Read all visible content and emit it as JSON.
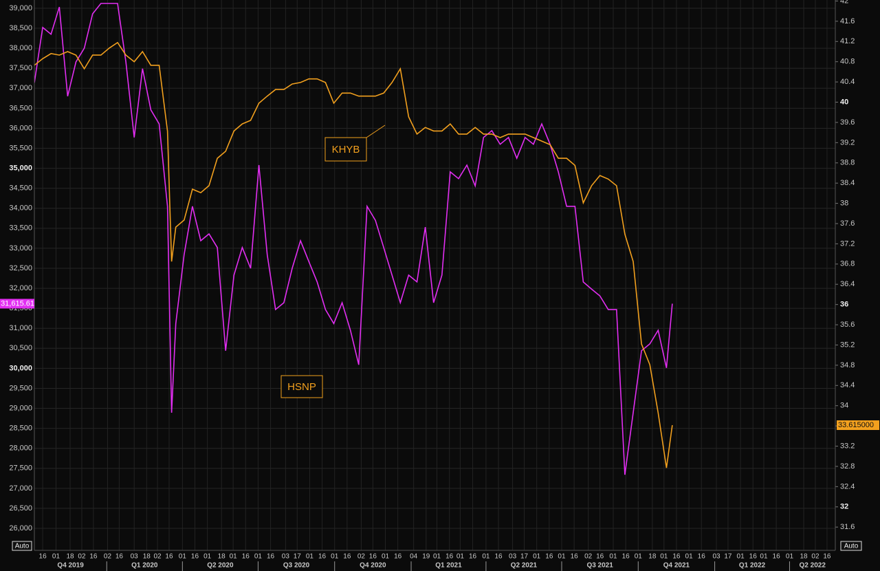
{
  "chart_data": {
    "type": "line",
    "x": [
      "2019-10-06",
      "2019-10-16",
      "2019-10-26",
      "2019-11-05",
      "2019-11-15",
      "2019-11-25",
      "2019-12-05",
      "2019-12-15",
      "2019-12-25",
      "2020-01-04",
      "2020-01-14",
      "2020-01-24",
      "2020-02-03",
      "2020-02-13",
      "2020-02-23",
      "2020-03-04",
      "2020-03-14",
      "2020-03-19",
      "2020-03-24",
      "2020-04-03",
      "2020-04-13",
      "2020-04-23",
      "2020-05-03",
      "2020-05-13",
      "2020-05-23",
      "2020-06-02",
      "2020-06-12",
      "2020-06-22",
      "2020-07-02",
      "2020-07-12",
      "2020-07-22",
      "2020-08-01",
      "2020-08-11",
      "2020-08-21",
      "2020-08-31",
      "2020-09-10",
      "2020-09-20",
      "2020-09-30",
      "2020-10-10",
      "2020-10-20",
      "2020-10-30",
      "2020-11-09",
      "2020-11-19",
      "2020-11-29",
      "2020-12-09",
      "2020-12-19",
      "2020-12-29",
      "2021-01-08",
      "2021-01-18",
      "2021-01-28",
      "2021-02-07",
      "2021-02-17",
      "2021-02-27",
      "2021-03-09",
      "2021-03-19",
      "2021-03-29",
      "2021-04-08",
      "2021-04-18",
      "2021-04-28",
      "2021-05-08",
      "2021-05-18",
      "2021-05-28",
      "2021-06-07",
      "2021-06-17",
      "2021-06-27",
      "2021-07-07",
      "2021-07-17",
      "2021-07-27",
      "2021-08-06",
      "2021-08-16",
      "2021-08-26",
      "2021-09-05",
      "2021-09-15",
      "2021-09-25",
      "2021-10-05",
      "2021-10-15",
      "2021-10-25",
      "2021-11-04",
      "2021-11-11"
    ],
    "series": [
      {
        "name": "HSNP",
        "color": "#e22ef2",
        "axis": "y",
        "last_label": "31,615.61",
        "values": [
          37140,
          38520,
          38350,
          39030,
          36800,
          37660,
          38000,
          38860,
          39120,
          39120,
          39120,
          37660,
          35770,
          37490,
          36460,
          36110,
          34050,
          28890,
          31120,
          32840,
          34050,
          33190,
          33360,
          33020,
          30440,
          32330,
          33020,
          32500,
          35080,
          32840,
          31470,
          31640,
          32500,
          33190,
          32670,
          32160,
          31470,
          31120,
          31640,
          30950,
          30090,
          34050,
          33700,
          33020,
          32330,
          31640,
          32330,
          32160,
          33530,
          31640,
          32330,
          34910,
          34740,
          35080,
          34560,
          35770,
          35940,
          35600,
          35770,
          35250,
          35770,
          35600,
          36110,
          35600,
          34910,
          34050,
          34050,
          32160,
          31980,
          31810,
          31470,
          31470,
          27340,
          28890,
          30440,
          30610,
          30950,
          30010,
          31615.61
        ]
      },
      {
        "name": "KHYB",
        "color": "#f2a01e",
        "axis": "y2",
        "last_label": "33.615000",
        "values": [
          40.73,
          40.86,
          40.96,
          40.93,
          41.0,
          40.93,
          40.66,
          40.93,
          40.93,
          41.07,
          41.18,
          40.93,
          40.8,
          41.0,
          40.73,
          40.73,
          39.43,
          36.85,
          37.53,
          37.67,
          38.28,
          38.21,
          38.35,
          38.89,
          39.03,
          39.43,
          39.57,
          39.64,
          39.98,
          40.12,
          40.25,
          40.25,
          40.36,
          40.39,
          40.46,
          40.46,
          40.39,
          39.98,
          40.18,
          40.18,
          40.12,
          40.12,
          40.12,
          40.18,
          40.39,
          40.66,
          39.71,
          39.37,
          39.5,
          39.43,
          39.43,
          39.57,
          39.37,
          39.37,
          39.5,
          39.37,
          39.37,
          39.3,
          39.37,
          39.37,
          39.37,
          39.3,
          39.23,
          39.16,
          38.89,
          38.89,
          38.75,
          38.01,
          38.35,
          38.55,
          38.48,
          38.35,
          37.39,
          36.85,
          35.22,
          34.81,
          33.86,
          32.77,
          33.615
        ]
      }
    ],
    "xlim": [
      "2019-10-06",
      "2022-05-26"
    ],
    "xticks": [
      {
        "value": "2019-10-16",
        "label": "16"
      },
      {
        "value": "2019-11-01",
        "label": "01"
      },
      {
        "value": "2019-11-18",
        "label": "18"
      },
      {
        "value": "2019-12-02",
        "label": "02"
      },
      {
        "value": "2019-12-16",
        "label": "16"
      },
      {
        "value": "2020-01-02",
        "label": "02"
      },
      {
        "value": "2020-01-16",
        "label": "16"
      },
      {
        "value": "2020-02-03",
        "label": "03"
      },
      {
        "value": "2020-02-18",
        "label": "18"
      },
      {
        "value": "2020-03-02",
        "label": "02"
      },
      {
        "value": "2020-03-16",
        "label": "16"
      },
      {
        "value": "2020-04-01",
        "label": "01"
      },
      {
        "value": "2020-04-16",
        "label": "16"
      },
      {
        "value": "2020-05-01",
        "label": "01"
      },
      {
        "value": "2020-05-18",
        "label": "18"
      },
      {
        "value": "2020-06-01",
        "label": "01"
      },
      {
        "value": "2020-06-16",
        "label": "16"
      },
      {
        "value": "2020-07-01",
        "label": "01"
      },
      {
        "value": "2020-07-16",
        "label": "16"
      },
      {
        "value": "2020-08-03",
        "label": "03"
      },
      {
        "value": "2020-08-17",
        "label": "17"
      },
      {
        "value": "2020-09-01",
        "label": "01"
      },
      {
        "value": "2020-09-16",
        "label": "16"
      },
      {
        "value": "2020-10-01",
        "label": "01"
      },
      {
        "value": "2020-10-16",
        "label": "16"
      },
      {
        "value": "2020-11-02",
        "label": "02"
      },
      {
        "value": "2020-11-16",
        "label": "16"
      },
      {
        "value": "2020-12-01",
        "label": "01"
      },
      {
        "value": "2020-12-16",
        "label": "16"
      },
      {
        "value": "2021-01-04",
        "label": "04"
      },
      {
        "value": "2021-01-19",
        "label": "19"
      },
      {
        "value": "2021-02-01",
        "label": "01"
      },
      {
        "value": "2021-02-16",
        "label": "16"
      },
      {
        "value": "2021-03-01",
        "label": "01"
      },
      {
        "value": "2021-03-16",
        "label": "16"
      },
      {
        "value": "2021-04-01",
        "label": "01"
      },
      {
        "value": "2021-04-16",
        "label": "16"
      },
      {
        "value": "2021-05-03",
        "label": "03"
      },
      {
        "value": "2021-05-17",
        "label": "17"
      },
      {
        "value": "2021-06-01",
        "label": "01"
      },
      {
        "value": "2021-06-16",
        "label": "16"
      },
      {
        "value": "2021-07-01",
        "label": "01"
      },
      {
        "value": "2021-07-16",
        "label": "16"
      },
      {
        "value": "2021-08-02",
        "label": "02"
      },
      {
        "value": "2021-08-16",
        "label": "16"
      },
      {
        "value": "2021-09-01",
        "label": "01"
      },
      {
        "value": "2021-09-16",
        "label": "16"
      },
      {
        "value": "2021-10-01",
        "label": "01"
      },
      {
        "value": "2021-10-18",
        "label": "18"
      },
      {
        "value": "2021-11-01",
        "label": "01"
      },
      {
        "value": "2021-11-16",
        "label": "16"
      },
      {
        "value": "2021-12-01",
        "label": "01"
      },
      {
        "value": "2021-12-16",
        "label": "16"
      },
      {
        "value": "2022-01-03",
        "label": "03"
      },
      {
        "value": "2022-01-17",
        "label": "17"
      },
      {
        "value": "2022-02-01",
        "label": "01"
      },
      {
        "value": "2022-02-16",
        "label": "16"
      },
      {
        "value": "2022-03-01",
        "label": "01"
      },
      {
        "value": "2022-03-16",
        "label": "16"
      },
      {
        "value": "2022-04-01",
        "label": "01"
      },
      {
        "value": "2022-04-18",
        "label": "18"
      },
      {
        "value": "2022-05-02",
        "label": "02"
      },
      {
        "value": "2022-05-16",
        "label": "16"
      }
    ],
    "quarters": [
      {
        "value": "2019-10-01",
        "label": "Q4 2019"
      },
      {
        "value": "2020-01-01",
        "label": "Q1 2020"
      },
      {
        "value": "2020-04-01",
        "label": "Q2 2020"
      },
      {
        "value": "2020-07-01",
        "label": "Q3 2020"
      },
      {
        "value": "2020-10-01",
        "label": "Q4 2020"
      },
      {
        "value": "2021-01-01",
        "label": "Q1 2021"
      },
      {
        "value": "2021-04-01",
        "label": "Q2 2021"
      },
      {
        "value": "2021-07-01",
        "label": "Q3 2021"
      },
      {
        "value": "2021-10-01",
        "label": "Q4 2021"
      },
      {
        "value": "2022-01-01",
        "label": "Q1 2022"
      },
      {
        "value": "2022-04-01",
        "label": "Q2 2022"
      },
      {
        "value": "2022-07-01",
        "label": ""
      }
    ],
    "ylim": [
      25450,
      39206
    ],
    "yticks": [
      {
        "value": 26000,
        "label": "26,000"
      },
      {
        "value": 26500,
        "label": "26,500"
      },
      {
        "value": 27000,
        "label": "27,000"
      },
      {
        "value": 27500,
        "label": "27,500"
      },
      {
        "value": 28000,
        "label": "28,000"
      },
      {
        "value": 28500,
        "label": "28,500"
      },
      {
        "value": 29000,
        "label": "29,000"
      },
      {
        "value": 29500,
        "label": "29,500"
      },
      {
        "value": 30000,
        "label": "30,000"
      },
      {
        "value": 30500,
        "label": "30,500"
      },
      {
        "value": 31000,
        "label": "31,000"
      },
      {
        "value": 31500,
        "label": "31,500"
      },
      {
        "value": 32000,
        "label": "32,000"
      },
      {
        "value": 32500,
        "label": "32,500"
      },
      {
        "value": 33000,
        "label": "33,000"
      },
      {
        "value": 33500,
        "label": "33,500"
      },
      {
        "value": 34000,
        "label": "34,000"
      },
      {
        "value": 34500,
        "label": "34,500"
      },
      {
        "value": 35000,
        "label": "35,000"
      },
      {
        "value": 35500,
        "label": "35,500"
      },
      {
        "value": 36000,
        "label": "36,000"
      },
      {
        "value": 36500,
        "label": "36,500"
      },
      {
        "value": 37000,
        "label": "37,000"
      },
      {
        "value": 37500,
        "label": "37,500"
      },
      {
        "value": 38000,
        "label": "38,000"
      },
      {
        "value": 38500,
        "label": "38,500"
      },
      {
        "value": 39000,
        "label": "39,000"
      }
    ],
    "y2lim": [
      31.14,
      42.02
    ],
    "y2ticks": [
      31.6,
      32,
      32.4,
      32.8,
      33.2,
      33.6,
      34,
      34.4,
      34.8,
      35.2,
      35.6,
      36,
      36.4,
      36.8,
      37.2,
      37.6,
      38,
      38.4,
      38.8,
      39.2,
      39.6,
      40,
      40.4,
      40.8,
      41.2,
      41.6,
      42
    ],
    "grid": true
  },
  "controls": [
    "Auto",
    "Auto"
  ]
}
